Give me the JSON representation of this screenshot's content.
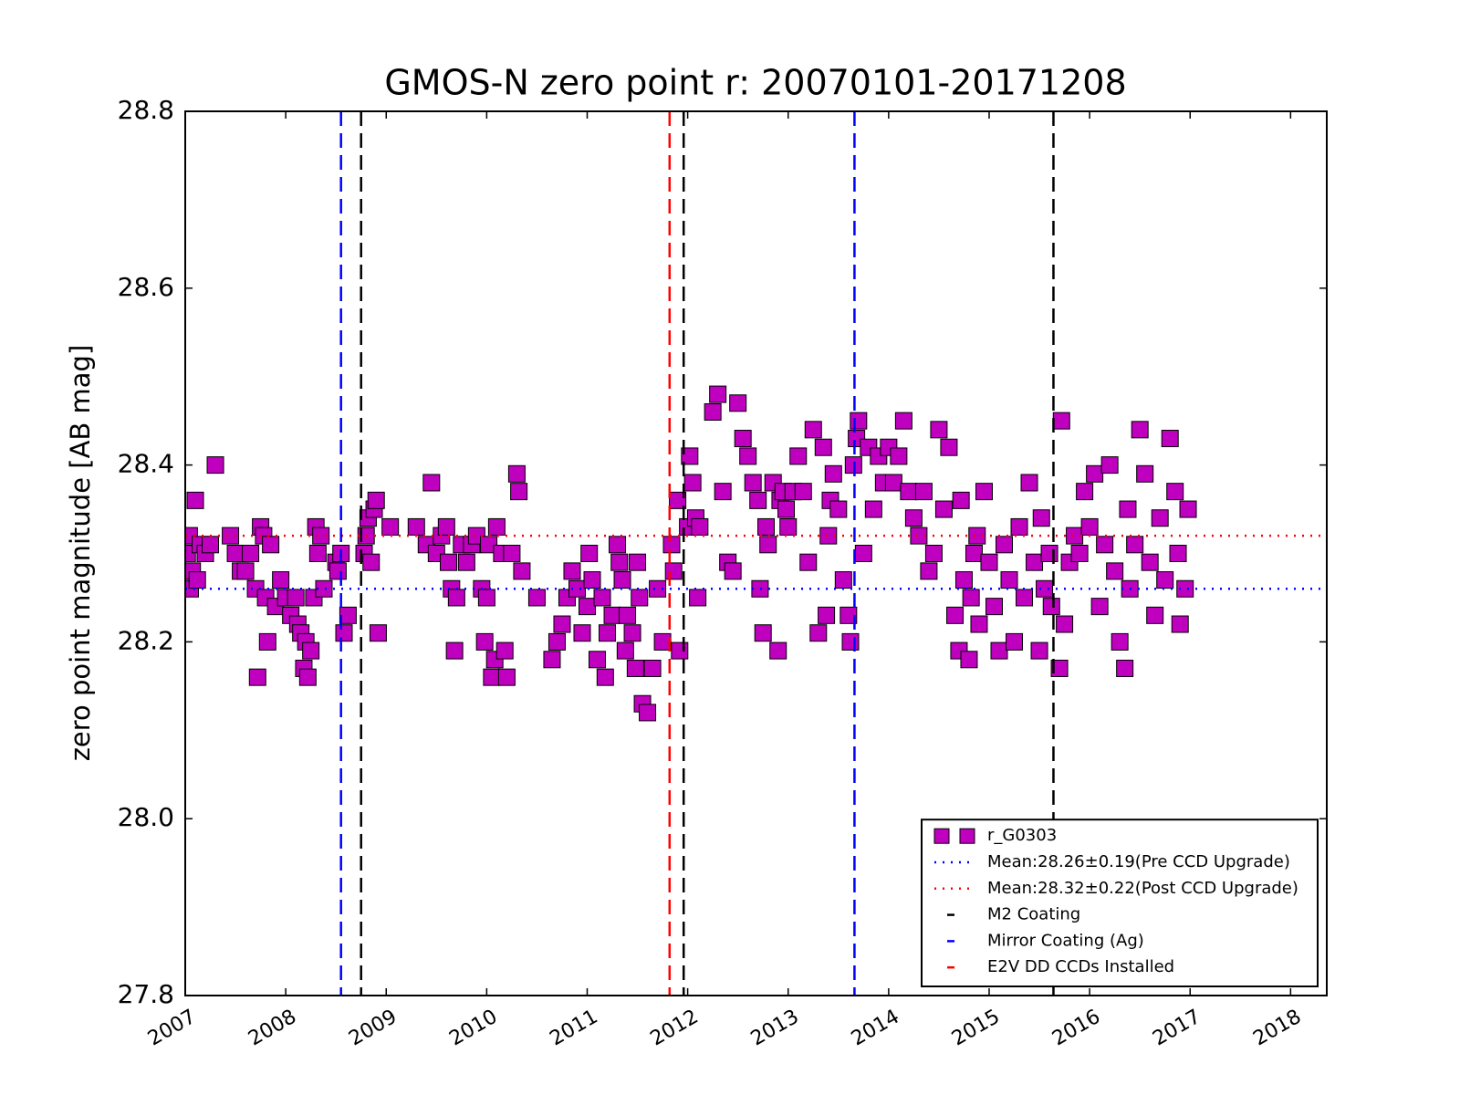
{
  "chart_data": {
    "type": "scatter",
    "title": "GMOS-N zero point r: 20070101-20171208",
    "y_label": "zero point magnitude [AB mag]",
    "xlim": [
      2007,
      2018.36
    ],
    "xticks": [
      2007,
      2008,
      2009,
      2010,
      2011,
      2012,
      2013,
      2014,
      2015,
      2016,
      2017,
      2018
    ],
    "ylim": [
      27.8,
      28.8
    ],
    "yticks": [
      27.8,
      {
        "value": 28.0,
        "label": "28.0"
      },
      28.2,
      28.4,
      28.6,
      28.8
    ],
    "legend": "lower right",
    "series": [
      {
        "name": "r_G0303",
        "color": "#bf00bf",
        "x": [
          2007.02,
          2007.04,
          2007.05,
          2007.07,
          2007.1,
          2007.12,
          2007.15,
          2007.2,
          2007.25,
          2007.3,
          2007.45,
          2007.5,
          2007.55,
          2007.6,
          2007.65,
          2007.7,
          2007.72,
          2007.75,
          2007.78,
          2007.8,
          2007.82,
          2007.85,
          2007.9,
          2007.95,
          2008.0,
          2008.05,
          2008.1,
          2008.12,
          2008.15,
          2008.18,
          2008.2,
          2008.22,
          2008.25,
          2008.28,
          2008.3,
          2008.32,
          2008.35,
          2008.38,
          2008.5,
          2008.52,
          2008.55,
          2008.58,
          2008.62,
          2008.78,
          2008.8,
          2008.82,
          2008.85,
          2008.88,
          2008.9,
          2008.92,
          2009.04,
          2009.3,
          2009.4,
          2009.45,
          2009.5,
          2009.55,
          2009.6,
          2009.62,
          2009.65,
          2009.68,
          2009.7,
          2009.75,
          2009.8,
          2009.85,
          2009.9,
          2009.95,
          2009.98,
          2010.0,
          2010.02,
          2010.05,
          2010.08,
          2010.1,
          2010.15,
          2010.18,
          2010.2,
          2010.25,
          2010.3,
          2010.32,
          2010.35,
          2010.5,
          2010.65,
          2010.7,
          2010.75,
          2010.8,
          2010.85,
          2010.9,
          2010.95,
          2011.0,
          2011.02,
          2011.05,
          2011.1,
          2011.15,
          2011.18,
          2011.2,
          2011.25,
          2011.3,
          2011.32,
          2011.35,
          2011.38,
          2011.4,
          2011.45,
          2011.48,
          2011.5,
          2011.52,
          2011.55,
          2011.6,
          2011.65,
          2011.7,
          2011.75,
          2011.84,
          2011.86,
          2011.9,
          2011.92,
          2012.0,
          2012.02,
          2012.05,
          2012.08,
          2012.1,
          2012.12,
          2012.25,
          2012.3,
          2012.35,
          2012.4,
          2012.45,
          2012.5,
          2012.55,
          2012.6,
          2012.65,
          2012.7,
          2012.72,
          2012.75,
          2012.78,
          2012.8,
          2012.85,
          2012.9,
          2012.92,
          2012.95,
          2012.98,
          2013.0,
          2013.05,
          2013.1,
          2013.15,
          2013.2,
          2013.25,
          2013.3,
          2013.35,
          2013.38,
          2013.4,
          2013.42,
          2013.45,
          2013.5,
          2013.55,
          2013.6,
          2013.62,
          2013.65,
          2013.68,
          2013.7,
          2013.75,
          2013.8,
          2013.85,
          2013.9,
          2013.95,
          2014.0,
          2014.05,
          2014.1,
          2014.15,
          2014.2,
          2014.25,
          2014.3,
          2014.35,
          2014.4,
          2014.45,
          2014.5,
          2014.55,
          2014.6,
          2014.66,
          2014.7,
          2014.72,
          2014.75,
          2014.8,
          2014.82,
          2014.85,
          2014.88,
          2014.9,
          2014.95,
          2015.0,
          2015.05,
          2015.1,
          2015.15,
          2015.2,
          2015.25,
          2015.3,
          2015.35,
          2015.4,
          2015.45,
          2015.5,
          2015.52,
          2015.55,
          2015.6,
          2015.62,
          2015.7,
          2015.72,
          2015.75,
          2015.8,
          2015.85,
          2015.9,
          2015.95,
          2016.0,
          2016.05,
          2016.1,
          2016.15,
          2016.2,
          2016.25,
          2016.3,
          2016.35,
          2016.38,
          2016.4,
          2016.45,
          2016.5,
          2016.55,
          2016.6,
          2016.65,
          2016.7,
          2016.75,
          2016.8,
          2016.85,
          2016.88,
          2016.9,
          2016.95,
          2016.98
        ],
        "values": [
          28.3,
          28.32,
          28.26,
          28.28,
          28.36,
          28.27,
          28.31,
          28.3,
          28.31,
          28.4,
          28.32,
          28.3,
          28.28,
          28.28,
          28.3,
          28.26,
          28.16,
          28.33,
          28.32,
          28.25,
          28.2,
          28.31,
          28.24,
          28.27,
          28.25,
          28.23,
          28.25,
          28.22,
          28.21,
          28.17,
          28.2,
          28.16,
          28.19,
          28.25,
          28.33,
          28.3,
          28.32,
          28.26,
          28.29,
          28.28,
          28.3,
          28.21,
          28.23,
          28.3,
          28.32,
          28.34,
          28.29,
          28.35,
          28.36,
          28.21,
          28.33,
          28.33,
          28.31,
          28.38,
          28.3,
          28.32,
          28.33,
          28.29,
          28.26,
          28.19,
          28.25,
          28.31,
          28.29,
          28.31,
          28.32,
          28.26,
          28.2,
          28.25,
          28.31,
          28.16,
          28.18,
          28.33,
          28.3,
          28.19,
          28.16,
          28.3,
          28.39,
          28.37,
          28.28,
          28.25,
          28.18,
          28.2,
          28.22,
          28.25,
          28.28,
          28.26,
          28.21,
          28.24,
          28.3,
          28.27,
          28.18,
          28.25,
          28.16,
          28.21,
          28.23,
          28.31,
          28.29,
          28.27,
          28.19,
          28.23,
          28.21,
          28.17,
          28.29,
          28.25,
          28.13,
          28.12,
          28.17,
          28.26,
          28.2,
          28.31,
          28.28,
          28.36,
          28.19,
          28.33,
          28.41,
          28.38,
          28.34,
          28.25,
          28.33,
          28.46,
          28.48,
          28.37,
          28.29,
          28.28,
          28.47,
          28.43,
          28.41,
          28.38,
          28.36,
          28.26,
          28.21,
          28.33,
          28.31,
          28.38,
          28.19,
          28.36,
          28.37,
          28.35,
          28.33,
          28.37,
          28.41,
          28.37,
          28.29,
          28.44,
          28.21,
          28.42,
          28.23,
          28.32,
          28.36,
          28.39,
          28.35,
          28.27,
          28.23,
          28.2,
          28.4,
          28.43,
          28.45,
          28.3,
          28.42,
          28.35,
          28.41,
          28.38,
          28.42,
          28.38,
          28.41,
          28.45,
          28.37,
          28.34,
          28.32,
          28.37,
          28.28,
          28.3,
          28.44,
          28.35,
          28.42,
          28.23,
          28.19,
          28.36,
          28.27,
          28.18,
          28.25,
          28.3,
          28.32,
          28.22,
          28.37,
          28.29,
          28.24,
          28.19,
          28.31,
          28.27,
          28.2,
          28.33,
          28.25,
          28.38,
          28.29,
          28.19,
          28.34,
          28.26,
          28.3,
          28.24,
          28.17,
          28.45,
          28.22,
          28.29,
          28.32,
          28.3,
          28.37,
          28.33,
          28.39,
          28.24,
          28.31,
          28.4,
          28.28,
          28.2,
          28.17,
          28.35,
          28.26,
          28.31,
          28.44,
          28.39,
          28.29,
          28.23,
          28.34,
          28.27,
          28.43,
          28.37,
          28.3,
          28.22,
          28.26,
          28.35
        ]
      }
    ],
    "hlines": [
      {
        "name": "Mean:28.26±0.19(Pre CCD Upgrade)",
        "color": "#0000ff",
        "value": 28.26
      },
      {
        "name": "Mean:28.32±0.22(Post CCD Upgrade)",
        "color": "#ff0000",
        "value": 28.32
      }
    ],
    "vlines": [
      {
        "name": "M2 Coating",
        "color": "#000000",
        "x": [
          2008.75,
          2011.96,
          2015.64
        ]
      },
      {
        "name": "Mirror Coating (Ag)",
        "color": "#0000ff",
        "x": [
          2008.55,
          2013.66
        ]
      },
      {
        "name": "E2V DD CCDs Installed",
        "color": "#ff0000",
        "x": [
          2011.82
        ]
      }
    ]
  }
}
